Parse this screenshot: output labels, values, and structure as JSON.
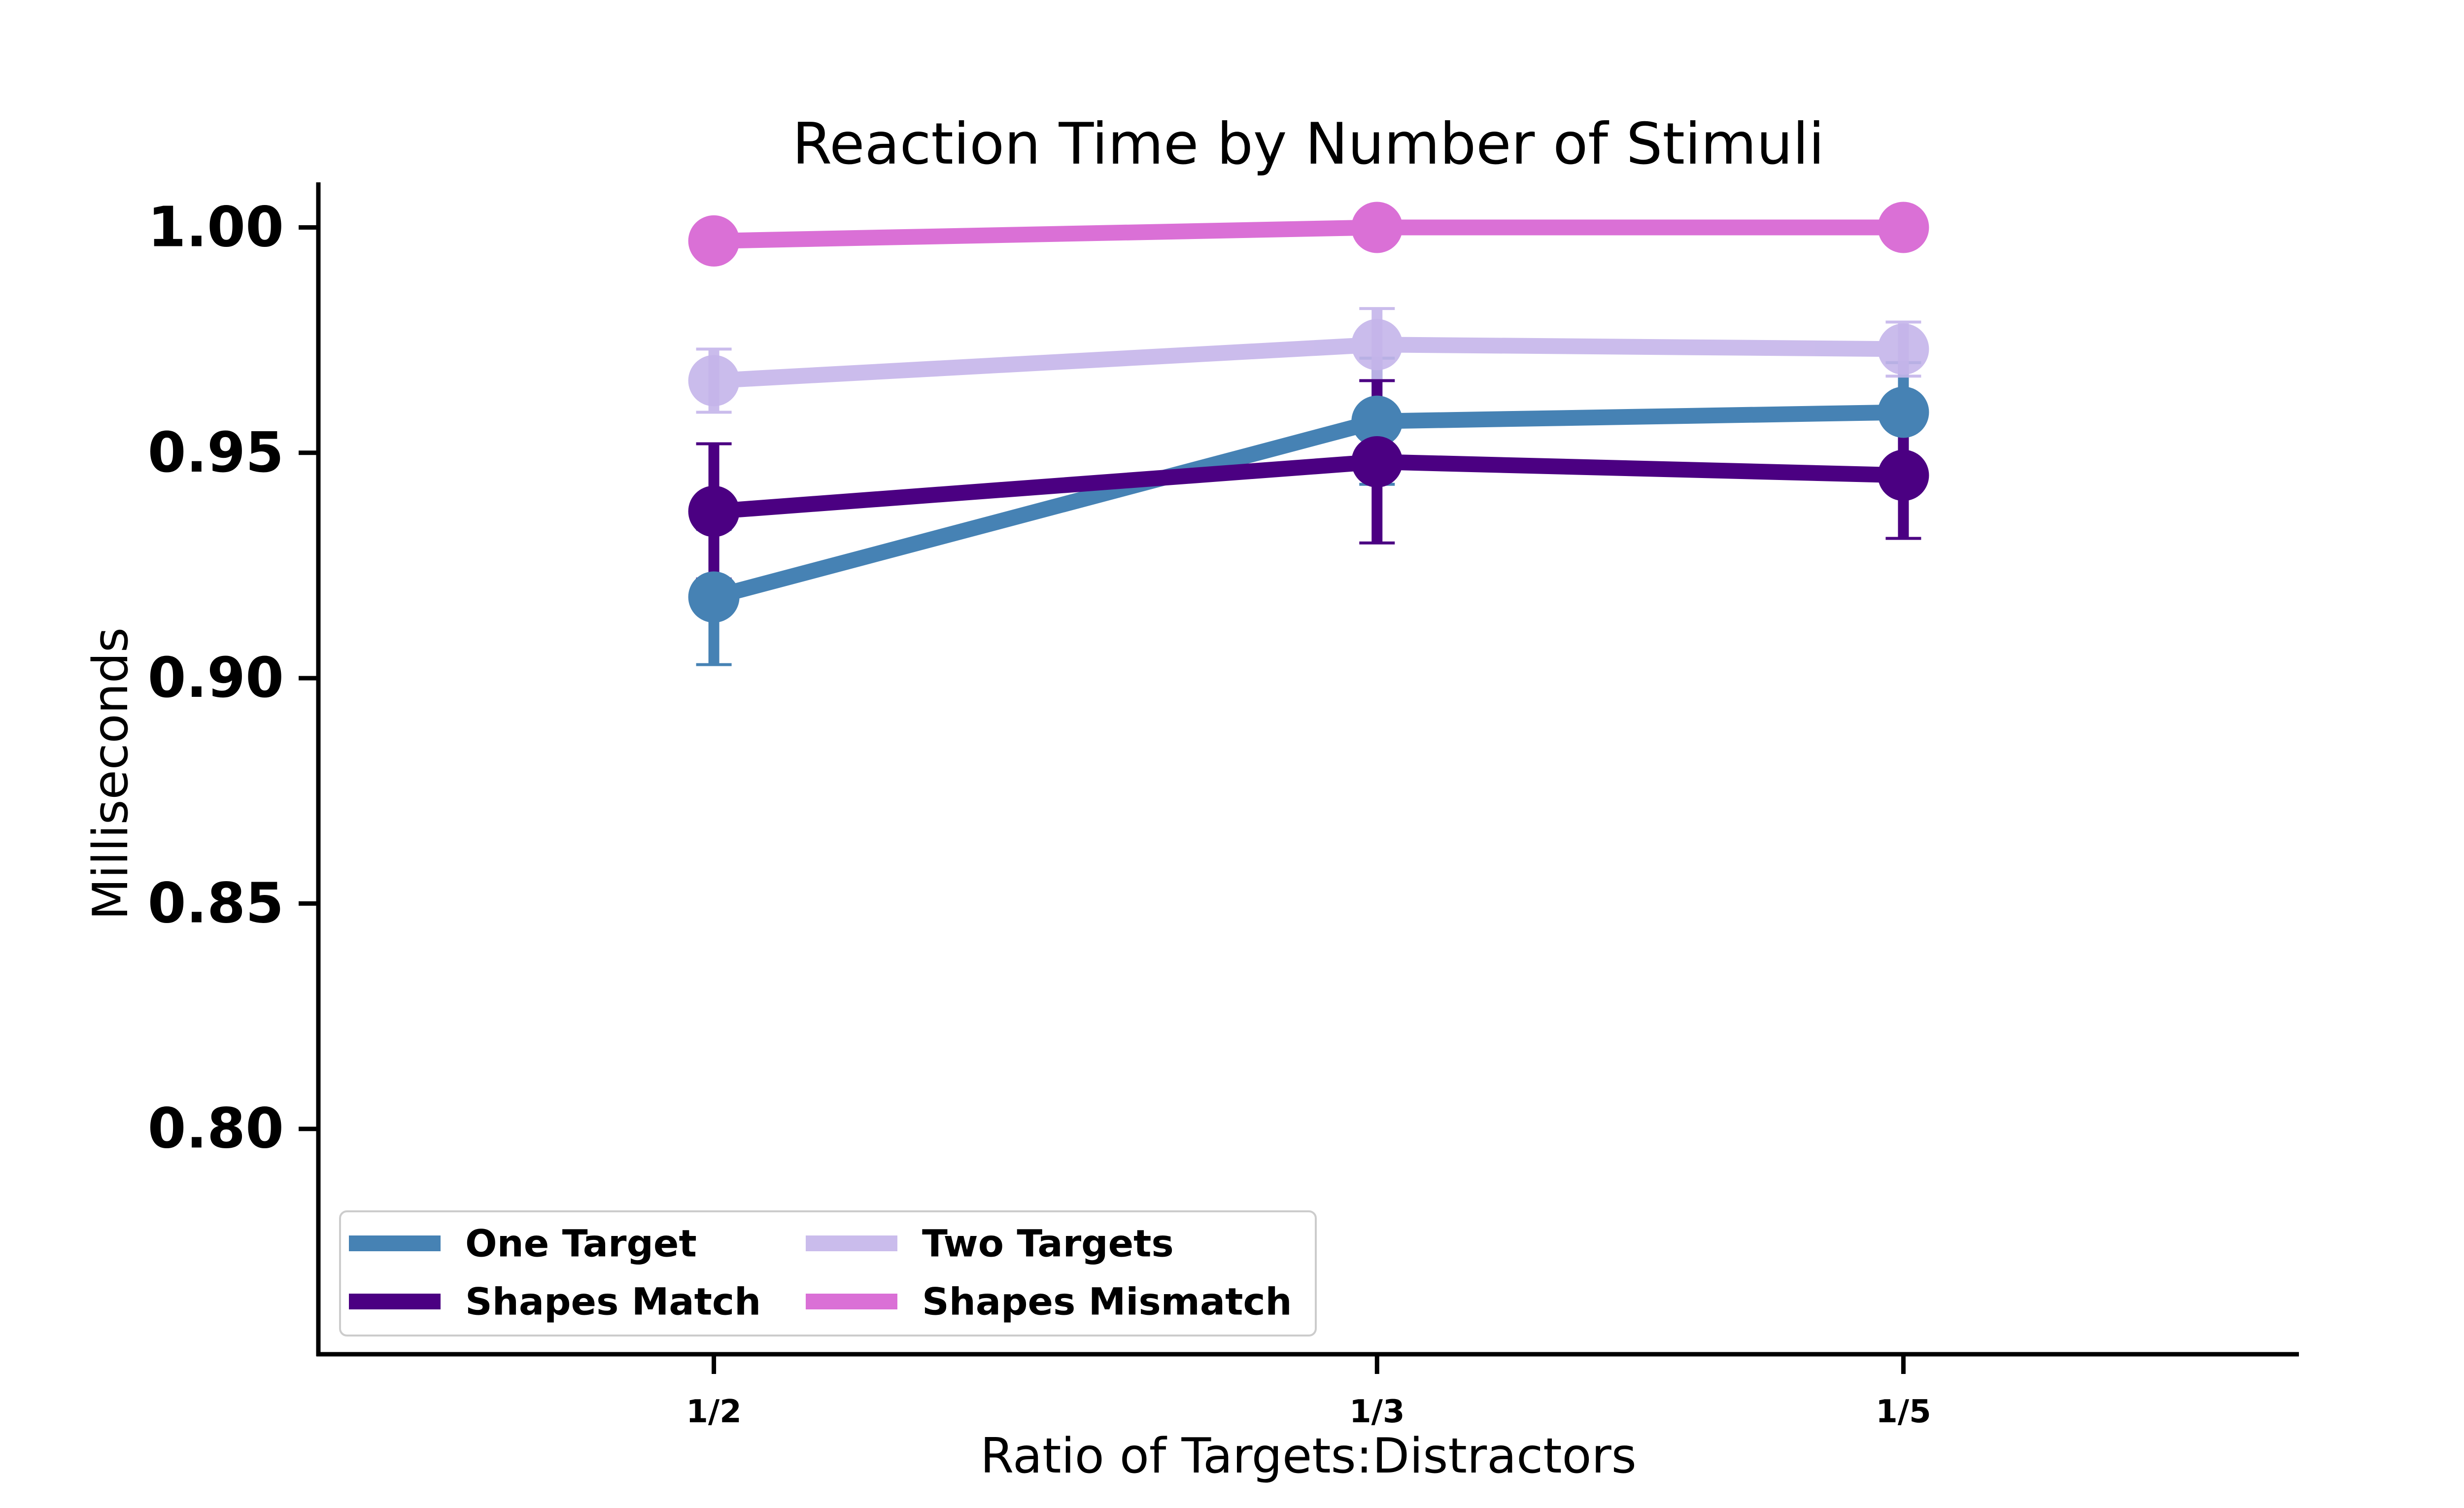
{
  "chart_data": {
    "type": "line",
    "title": "Reaction Time by Number of Stimuli",
    "xlabel": "Ratio of Targets:Distractors",
    "ylabel": "Milliseconds",
    "categories": [
      "1/2",
      "1/3",
      "1/5"
    ],
    "category_x": [
      0,
      1.115,
      2.0
    ],
    "xlim": [
      -0.665,
      2.665
    ],
    "ylim": [
      0.75,
      1.01
    ],
    "yticks": [
      0.8,
      0.85,
      0.9,
      0.95,
      1.0
    ],
    "ytick_labels": [
      "0.80",
      "0.85",
      "0.90",
      "0.95",
      "1.00"
    ],
    "grid": false,
    "legend_position": "lower-left",
    "series": [
      {
        "name": "One Target",
        "color": "#4682b4",
        "alpha": 1.0,
        "values": [
          0.918,
          0.957,
          0.959
        ],
        "errors": [
          0.015,
          0.014,
          0.011
        ]
      },
      {
        "name": "Two Targets",
        "color": "#c5b5ea",
        "alpha": 0.9,
        "values": [
          0.966,
          0.974,
          0.973
        ],
        "errors": [
          0.007,
          0.008,
          0.006
        ]
      },
      {
        "name": "Shapes Match",
        "color": "#4b0082",
        "alpha": 1.0,
        "values": [
          0.937,
          0.948,
          0.945
        ],
        "errors": [
          0.015,
          0.018,
          0.014
        ]
      },
      {
        "name": "Shapes Mismatch",
        "color": "#da70d6",
        "alpha": 1.0,
        "values": [
          0.997,
          1.0,
          1.0
        ],
        "errors": [
          0.0,
          0.0,
          0.0
        ]
      }
    ],
    "legend_order": [
      0,
      2,
      1,
      3
    ]
  }
}
